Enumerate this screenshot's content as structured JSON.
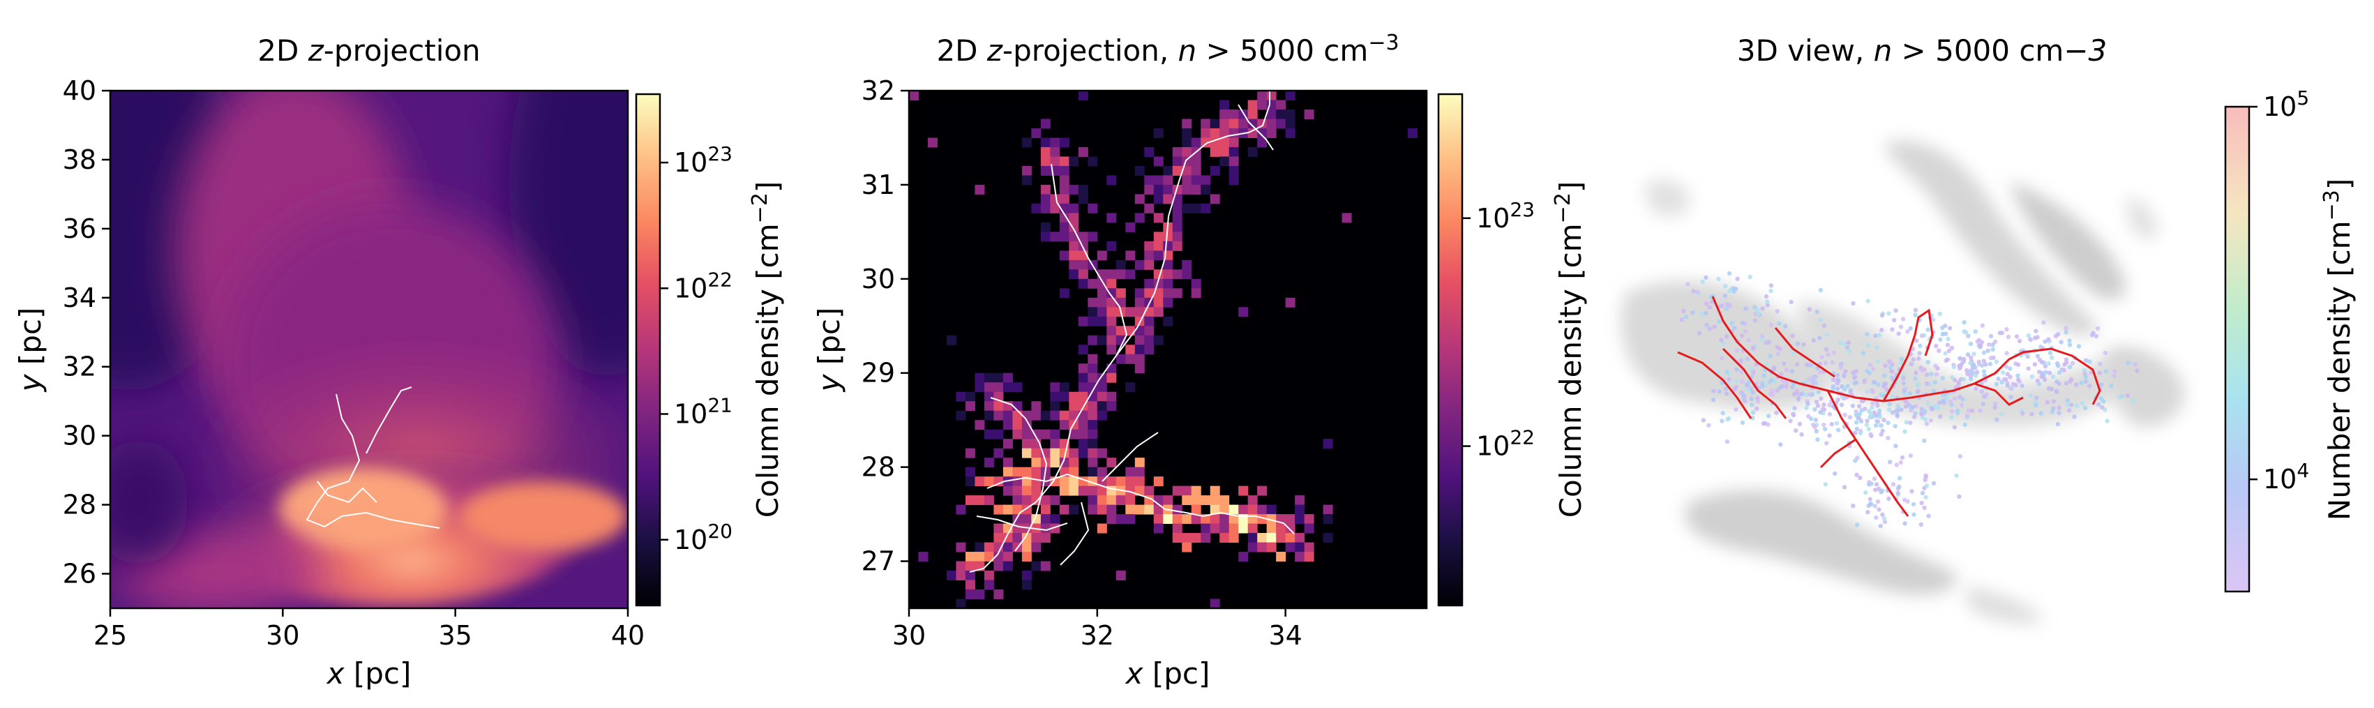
{
  "chart_data": [
    {
      "type": "heatmap",
      "title": "2D z-projection",
      "title_parts": [
        "2D ",
        "z",
        "-projection"
      ],
      "xlabel_parts": [
        "x",
        " [pc]"
      ],
      "ylabel_parts": [
        "y",
        " [pc]"
      ],
      "xlim": [
        25,
        40
      ],
      "ylim": [
        25,
        40
      ],
      "xticks": [
        "25",
        "30",
        "35",
        "40"
      ],
      "yticks": [
        "26",
        "28",
        "30",
        "32",
        "34",
        "36",
        "38",
        "40"
      ],
      "colormap": "magma",
      "colorbar": {
        "label": "Column density [cm⁻²]",
        "label_parts": [
          "Column density [cm",
          "−2",
          "]"
        ],
        "scale": "log",
        "range": [
          3e+19,
          3.5e+23
        ],
        "ticks": [
          {
            "base": "10",
            "exp": "20",
            "value": 1e+20
          },
          {
            "base": "10",
            "exp": "21",
            "value": 1e+21
          },
          {
            "base": "10",
            "exp": "22",
            "value": 1e+22
          },
          {
            "base": "10",
            "exp": "23",
            "value": 1e+23
          }
        ]
      },
      "filament_overlay_color": "#ffffff"
    },
    {
      "type": "heatmap",
      "title_parts": [
        "2D ",
        "z",
        "-projection, ",
        "n",
        " > 5000 cm",
        "−3",
        ""
      ],
      "xlabel_parts": [
        "x",
        " [pc]"
      ],
      "ylabel_parts": [
        "y",
        " [pc]"
      ],
      "xlim": [
        30,
        35.5
      ],
      "ylim": [
        26.5,
        32
      ],
      "xticks": [
        "30",
        "32",
        "34"
      ],
      "yticks": [
        "27",
        "28",
        "29",
        "30",
        "31",
        "32"
      ],
      "colormap": "magma",
      "colorbar": {
        "label_parts": [
          "Column density [cm",
          "−2",
          "]"
        ],
        "scale": "log",
        "range": [
          2e+21,
          3.5e+23
        ],
        "ticks": [
          {
            "base": "10",
            "exp": "22",
            "value": 1e+22
          },
          {
            "base": "10",
            "exp": "23",
            "value": 1e+23
          }
        ]
      },
      "filament_overlay_color": "#ffffff"
    },
    {
      "type": "scatter",
      "title_parts": [
        "3D view, ",
        "n",
        " > 5000 cm",
        "−3",
        ""
      ],
      "colormap": "pastel-rainbow",
      "colorbar": {
        "label_parts": [
          "Number density [cm",
          "−3",
          "]"
        ],
        "scale": "log",
        "range": [
          5000,
          100000
        ],
        "ticks": [
          {
            "base": "10",
            "exp": "4",
            "value": 10000
          },
          {
            "base": "10",
            "exp": "5",
            "value": 100000
          }
        ]
      },
      "filament_color": "#e41a1c",
      "background_gas_color": "#c8c8c8"
    }
  ]
}
